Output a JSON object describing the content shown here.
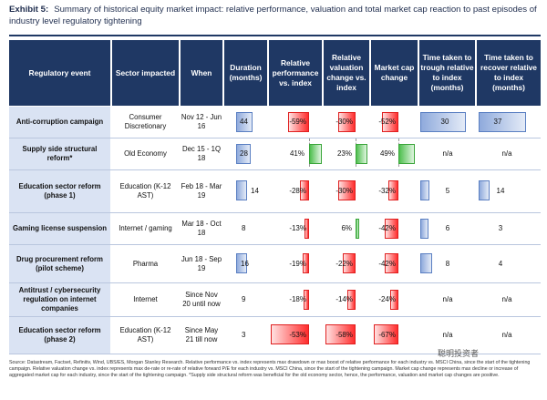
{
  "exhibit_label": "Exhibit 5:",
  "title": "Summary of historical equity market impact: relative performance, valuation and total market cap reaction to past episodes of industry level regulatory tightening",
  "headers": [
    "Regulatory  event",
    "Sector impacted",
    "When",
    "Duration (months)",
    "Relative performance vs. index",
    "Relative valuation change vs. index",
    "Market cap change",
    "Time taken to trough relative to index (months)",
    "Time taken to recover relative to index (months)"
  ],
  "rows": [
    {
      "event": "Anti-corruption campaign",
      "sector": "Consumer Discretionary",
      "when": "Nov 12 - Jun 16",
      "duration": "44",
      "rel_perf": "-59%",
      "rel_val": "-30%",
      "mcap": "-52%",
      "trough": "30",
      "recover": "37"
    },
    {
      "event": "Supply side structural reform*",
      "sector": "Old Economy",
      "when": "Dec 15 - 1Q 18",
      "duration": "28",
      "rel_perf": "41%",
      "rel_val": "23%",
      "mcap": "49%",
      "trough": "n/a",
      "recover": "n/a"
    },
    {
      "event": "Education sector reform (phase 1)",
      "sector": "Education (K-12 AST)",
      "when": "Feb 18 - Mar 19",
      "duration": "14",
      "rel_perf": "-28%",
      "rel_val": "-30%",
      "mcap": "-32%",
      "trough": "5",
      "recover": "14"
    },
    {
      "event": "Gaming license suspension",
      "sector": "Internet / gaming",
      "when": "Mar 18 - Oct 18",
      "duration": "8",
      "rel_perf": "-13%",
      "rel_val": "6%",
      "mcap": "-42%",
      "trough": "6",
      "recover": "3"
    },
    {
      "event": "Drug procurement reform (pilot scheme)",
      "sector": "Pharma",
      "when": "Jun 18 - Sep 19",
      "duration": "16",
      "rel_perf": "-19%",
      "rel_val": "-22%",
      "mcap": "-42%",
      "trough": "8",
      "recover": "4"
    },
    {
      "event": "Antitrust / cybersecurity regulation on internet companies",
      "sector": "Internet",
      "when": "Since Nov 20 until now",
      "duration": "9",
      "rel_perf": "-18%",
      "rel_val": "-14%",
      "mcap": "-24%",
      "trough": "n/a",
      "recover": "n/a"
    },
    {
      "event": "Education sector reform (phase 2)",
      "sector": "Education (K-12 AST)",
      "when": "Since May 21 till now",
      "duration": "3",
      "rel_perf": "-53%",
      "rel_val": "-58%",
      "mcap": "-67%",
      "trough": "n/a",
      "recover": "n/a"
    }
  ],
  "footer": "Source: Datastream, Factset, Refinitiv, Wind, UBS/ES, Morgan Stanley Research. Relative performance vs. index represents max drawdown or max boost of relative performance for each industry vs. MSCI China, since the start of the tightening campaign. Relative valuation change vs. index represents max de-rate or re-rate of relative forward P/E for each industry vs. MSCI China, since the start of the tightening campaign. Market cap change represents max decline or increase of aggregated market cap for each industry, since the start of the tightening campaign. *Supply side structural reform was beneficial for the old economy sector, hence, the performance, valuation and market cap changes are positive.",
  "watermark": "聪明投资者"
}
